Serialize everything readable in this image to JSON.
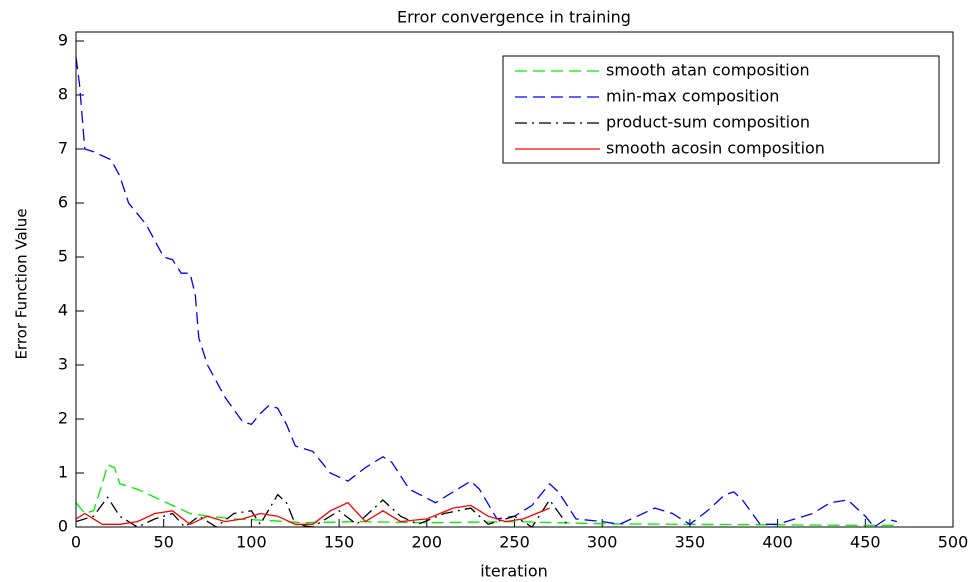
{
  "chart_data": {
    "type": "line",
    "title": "Error convergence in training",
    "xlabel": "iteration",
    "ylabel": "Error Function Value",
    "xlim": [
      0,
      500
    ],
    "ylim": [
      0,
      9
    ],
    "xticks": [
      0,
      50,
      100,
      150,
      200,
      250,
      300,
      350,
      400,
      450,
      500
    ],
    "yticks": [
      0,
      1,
      2,
      3,
      4,
      5,
      6,
      7,
      8,
      9
    ],
    "legend": "upper right",
    "series": [
      {
        "name": "smooth atan composition",
        "color": "#00ee00",
        "line_style": "dashed",
        "x": [
          0,
          5,
          10,
          15,
          18,
          22,
          25,
          35,
          45,
          55,
          65,
          75,
          90,
          110,
          130,
          160,
          200,
          250,
          300,
          350,
          400,
          450,
          468
        ],
        "values": [
          0.45,
          0.25,
          0.3,
          0.8,
          1.15,
          1.1,
          0.8,
          0.7,
          0.55,
          0.4,
          0.25,
          0.2,
          0.15,
          0.12,
          0.08,
          0.1,
          0.08,
          0.1,
          0.06,
          0.05,
          0.04,
          0.03,
          0.03
        ]
      },
      {
        "name": "min-max composition",
        "color": "#0000ff",
        "line_style": "dashed",
        "x": [
          0,
          2,
          5,
          10,
          20,
          25,
          30,
          40,
          45,
          50,
          55,
          60,
          65,
          68,
          70,
          75,
          85,
          95,
          100,
          105,
          110,
          115,
          120,
          125,
          135,
          145,
          155,
          165,
          175,
          180,
          190,
          205,
          215,
          225,
          230,
          240,
          250,
          260,
          270,
          275,
          285,
          300,
          310,
          320,
          330,
          340,
          350,
          360,
          370,
          375,
          380,
          390,
          400,
          410,
          420,
          430,
          440,
          450,
          455,
          462,
          468
        ],
        "values": [
          8.7,
          8.2,
          7.0,
          6.95,
          6.8,
          6.5,
          6.0,
          5.6,
          5.3,
          5.0,
          4.95,
          4.7,
          4.7,
          4.3,
          3.5,
          3.0,
          2.4,
          1.95,
          1.9,
          2.1,
          2.25,
          2.2,
          1.9,
          1.5,
          1.4,
          1.0,
          0.85,
          1.1,
          1.3,
          1.2,
          0.7,
          0.45,
          0.65,
          0.85,
          0.7,
          0.15,
          0.2,
          0.4,
          0.8,
          0.65,
          0.15,
          0.1,
          0.05,
          0.2,
          0.35,
          0.25,
          0.05,
          0.3,
          0.6,
          0.65,
          0.5,
          0.05,
          0.05,
          0.15,
          0.25,
          0.45,
          0.5,
          0.2,
          0,
          0.15,
          0.1
        ]
      },
      {
        "name": "product-sum composition",
        "color": "#000000",
        "line_style": "dashdot",
        "x": [
          0,
          10,
          18,
          25,
          35,
          45,
          55,
          62,
          70,
          80,
          90,
          100,
          105,
          115,
          120,
          125,
          135,
          150,
          160,
          175,
          185,
          195,
          210,
          225,
          235,
          250,
          260,
          270,
          280
        ],
        "values": [
          0.1,
          0.2,
          0.55,
          0.2,
          0.0,
          0.15,
          0.25,
          0.0,
          0.2,
          0.0,
          0.25,
          0.3,
          0.05,
          0.6,
          0.45,
          0.05,
          0.0,
          0.3,
          0.05,
          0.5,
          0.2,
          0.05,
          0.25,
          0.35,
          0.05,
          0.2,
          0.0,
          0.5,
          0.05
        ]
      },
      {
        "name": "smooth acosin composition",
        "color": "#ff0000",
        "line_style": "solid",
        "x": [
          0,
          5,
          15,
          25,
          35,
          45,
          55,
          65,
          75,
          85,
          95,
          105,
          115,
          125,
          135,
          145,
          155,
          165,
          175,
          185,
          200,
          215,
          225,
          235,
          245,
          255,
          270
        ],
        "values": [
          0.15,
          0.25,
          0.05,
          0.05,
          0.1,
          0.25,
          0.3,
          0.05,
          0.2,
          0.1,
          0.15,
          0.25,
          0.2,
          0.05,
          0.05,
          0.3,
          0.45,
          0.1,
          0.3,
          0.1,
          0.15,
          0.35,
          0.4,
          0.2,
          0.1,
          0.15,
          0.35
        ]
      }
    ]
  }
}
